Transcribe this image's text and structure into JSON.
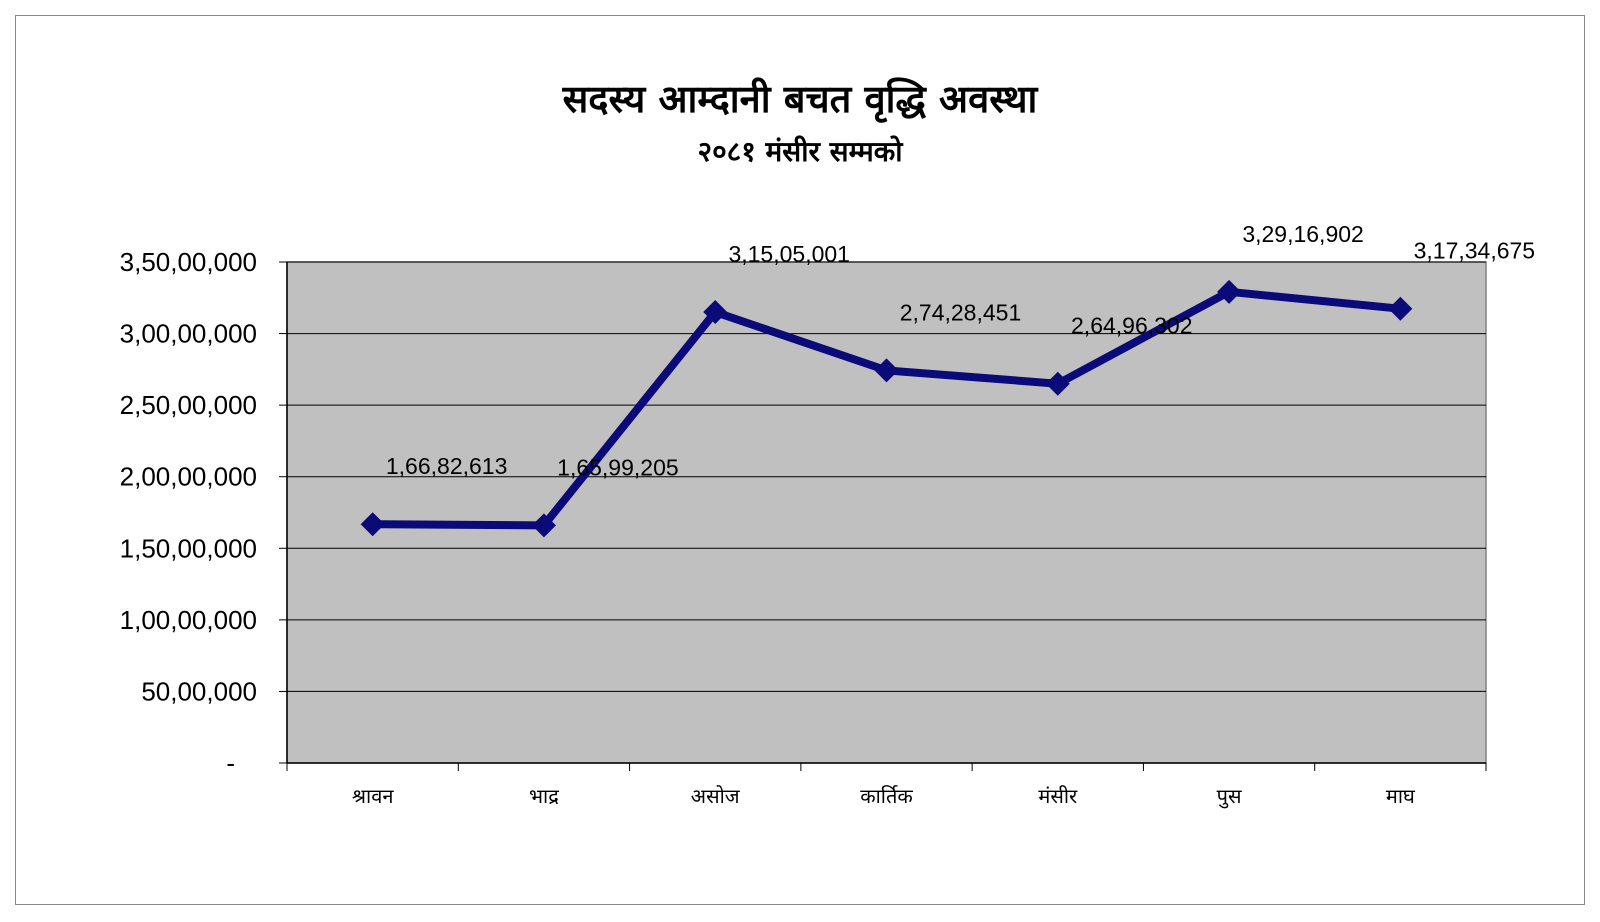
{
  "chart_data": {
    "type": "line",
    "title": "सदस्य आम्दानी बचत वृद्धि अवस्था",
    "subtitle": "२०८१ मंसीर सम्मको",
    "xlabel": "",
    "ylabel": "",
    "categories": [
      "श्रावन",
      "भाद्र",
      "असोज",
      "कार्तिक",
      "मंसीर",
      "पुस",
      "माघ"
    ],
    "series": [
      {
        "values": [
          16682613,
          16599205,
          31505001,
          27428451,
          26496302,
          32916902,
          31734675
        ],
        "labels": [
          "1,66,82,613",
          "1,65,99,205",
          "3,15,05,001",
          "2,74,28,451",
          "2,64,96,302",
          "3,29,16,902",
          "3,17,34,675"
        ]
      }
    ],
    "ylim": [
      0,
      35000000
    ],
    "yticks": [
      {
        "value": 0,
        "label": "-"
      },
      {
        "value": 5000000,
        "label": "50,00,000"
      },
      {
        "value": 10000000,
        "label": "1,00,00,000"
      },
      {
        "value": 15000000,
        "label": "1,50,00,000"
      },
      {
        "value": 20000000,
        "label": "2,00,00,000"
      },
      {
        "value": 25000000,
        "label": "2,50,00,000"
      },
      {
        "value": 30000000,
        "label": "3,00,00,000"
      },
      {
        "value": 35000000,
        "label": "3,50,00,000"
      }
    ],
    "grid": true,
    "legend": "none",
    "colors": {
      "line": "#0a0a78",
      "plot_background": "#c0c0c0",
      "gridline": "#000000"
    }
  }
}
